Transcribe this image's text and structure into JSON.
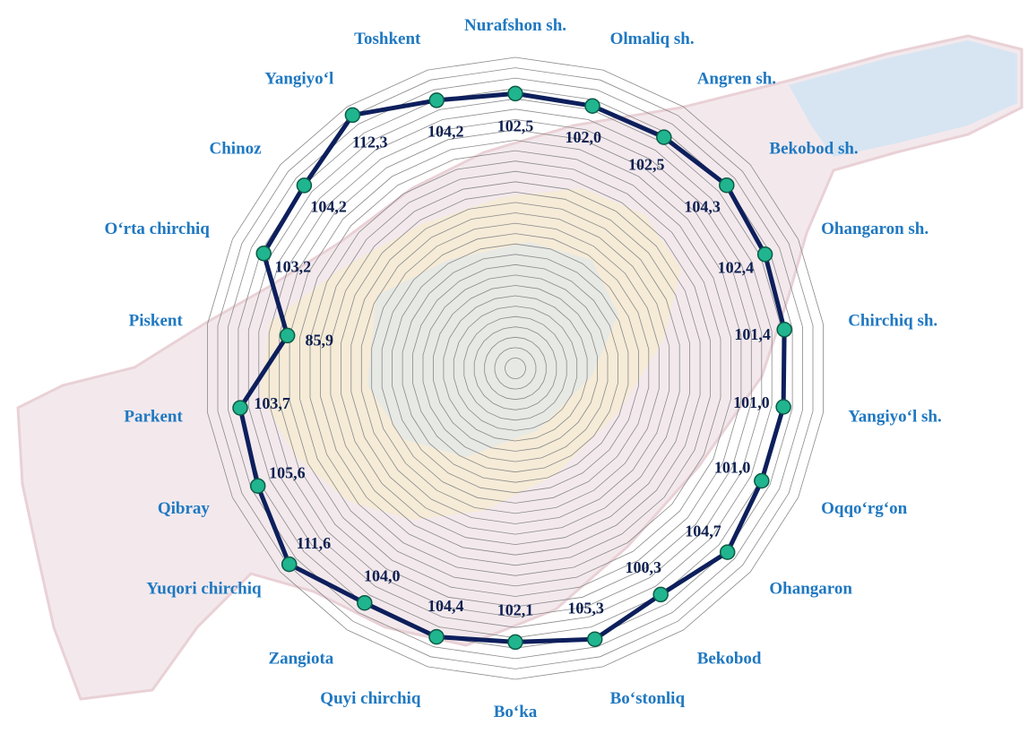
{
  "chart_data": {
    "type": "radar",
    "categories": [
      "Nurafshon sh.",
      "Olmaliq sh.",
      "Angren sh.",
      "Bekobod sh.",
      "Ohangaron sh.",
      "Chirchiq sh.",
      "Yangiyo‘l sh.",
      "Oqqo‘rg‘on",
      "Ohangaron",
      "Bekobod",
      "Bo‘stonliq",
      "Bo‘ka",
      "Quyi chirchiq",
      "Zangiota",
      "Yuqori chirchiq",
      "Qibray",
      "Parkent",
      "Piskent",
      "O‘rta chirchiq",
      "Chinoz",
      "Yangiyo‘l",
      "Toshkent"
    ],
    "values": [
      102.5,
      102.0,
      102.5,
      104.3,
      102.4,
      101.4,
      101.0,
      101.0,
      104.7,
      100.3,
      105.3,
      102.1,
      104.4,
      104.0,
      111.6,
      105.6,
      103.7,
      85.9,
      103.2,
      104.2,
      112.3,
      104.2
    ],
    "value_labels": [
      "102,5",
      "102,0",
      "102,5",
      "104,3",
      "102,4",
      "101,4",
      "101,0",
      "101,0",
      "104,7",
      "100,3",
      "105,3",
      "102,1",
      "104,4",
      "104,0",
      "111,6",
      "105,6",
      "103,7",
      "85,9",
      "103,2",
      "104,2",
      "112,3",
      "104,2"
    ],
    "ylim": [
      0,
      116
    ],
    "grid": true,
    "colors": {
      "series_line": "#0d1f5c",
      "marker_fill": "#20b58f",
      "marker_stroke": "#0b5a45",
      "category_label": "#1f78c1",
      "value_label": "#0d1f4f",
      "grid": "#8a8a8a"
    }
  }
}
